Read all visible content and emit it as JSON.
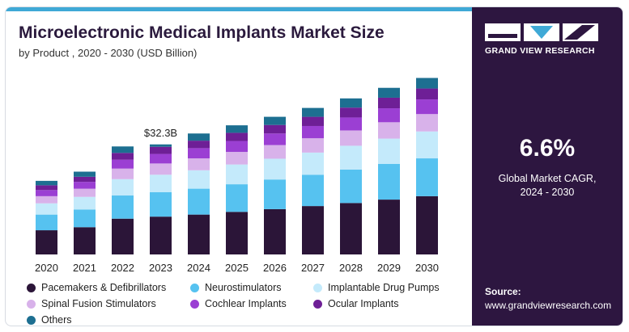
{
  "title": "Microelectronic Medical Implants Market Size",
  "subtitle": "by Product , 2020 - 2030 (USD Billion)",
  "colors": {
    "accent": "#3fa9d6",
    "panel": "#2d1640"
  },
  "chart_data": {
    "type": "bar",
    "stacked": true,
    "categories": [
      "2020",
      "2021",
      "2022",
      "2023",
      "2024",
      "2025",
      "2026",
      "2027",
      "2028",
      "2029",
      "2030"
    ],
    "series": [
      {
        "name": "Pacemakers & Defibrillators",
        "color": "#2b1538",
        "values": [
          7.1,
          8.0,
          10.5,
          11.1,
          11.7,
          12.5,
          13.3,
          14.2,
          15.1,
          16.1,
          17.1
        ]
      },
      {
        "name": "Neurostimulators",
        "color": "#56c2f0",
        "values": [
          4.6,
          5.2,
          6.8,
          7.2,
          7.6,
          8.1,
          8.7,
          9.2,
          9.8,
          10.5,
          11.1
        ]
      },
      {
        "name": "Implantable Drug Pumps",
        "color": "#c4eafb",
        "values": [
          3.3,
          3.7,
          4.8,
          5.1,
          5.4,
          5.8,
          6.1,
          6.5,
          7.0,
          7.4,
          7.9
        ]
      },
      {
        "name": "Spinal Fusion Stimulators",
        "color": "#d8b2ea",
        "values": [
          2.1,
          2.4,
          3.1,
          3.3,
          3.5,
          3.7,
          4.0,
          4.2,
          4.5,
          4.8,
          5.1
        ]
      },
      {
        "name": "Cochlear Implants",
        "color": "#9b3fd3",
        "values": [
          1.8,
          2.0,
          2.6,
          2.8,
          3.0,
          3.2,
          3.4,
          3.6,
          3.8,
          4.1,
          4.3
        ]
      },
      {
        "name": "Ocular Implants",
        "color": "#6e1f96",
        "values": [
          1.4,
          1.5,
          2.0,
          2.1,
          2.2,
          2.4,
          2.5,
          2.7,
          2.9,
          3.1,
          3.2
        ]
      },
      {
        "name": "Others",
        "color": "#1d6f91",
        "values": [
          1.3,
          1.5,
          1.9,
          0.7,
          2.1,
          2.2,
          2.4,
          2.6,
          2.7,
          2.9,
          3.1
        ]
      }
    ],
    "annotations": [
      {
        "category": "2023",
        "text": "$32.3B"
      }
    ],
    "ylim": [
      0,
      55
    ],
    "grid": false,
    "legend_position": "bottom"
  },
  "side_panel": {
    "brand": "GRAND VIEW RESEARCH",
    "logo_icons": [
      "rectangle-mark",
      "chevron-down-mark",
      "slash-mark"
    ],
    "cagr_value": "6.6%",
    "cagr_label_line1": "Global Market CAGR,",
    "cagr_label_line2": "2024 - 2030",
    "source_label": "Source:",
    "source_url": "www.grandviewresearch.com"
  }
}
